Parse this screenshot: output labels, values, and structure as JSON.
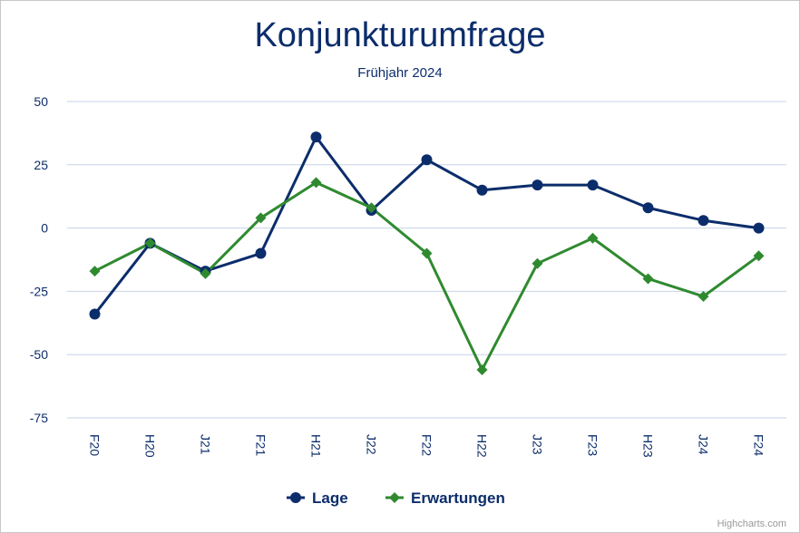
{
  "chart_data": {
    "type": "line",
    "title": "Konjunkturumfrage",
    "subtitle": "Frühjahr 2024",
    "categories": [
      "F20",
      "H20",
      "J21",
      "F21",
      "H21",
      "J22",
      "F22",
      "H22",
      "J23",
      "F23",
      "H23",
      "J24",
      "F24"
    ],
    "yticks": [
      "50",
      "25",
      "0",
      "-25",
      "-50",
      "-75"
    ],
    "ylim": [
      -75,
      50
    ],
    "grid": true,
    "legend_position": "bottom-center",
    "series": [
      {
        "name": "Lage",
        "color": "#0c2d6b",
        "marker": "circle",
        "values": [
          -34,
          -6,
          -17,
          -10,
          36,
          7,
          27,
          15,
          17,
          17,
          8,
          3,
          0
        ]
      },
      {
        "name": "Erwartungen",
        "color": "#2f8a2f",
        "marker": "diamond",
        "values": [
          -17,
          -6,
          -18,
          4,
          18,
          8,
          -10,
          -56,
          -14,
          -4,
          -20,
          -27,
          -11
        ]
      }
    ]
  },
  "credits": "Highcharts.com"
}
